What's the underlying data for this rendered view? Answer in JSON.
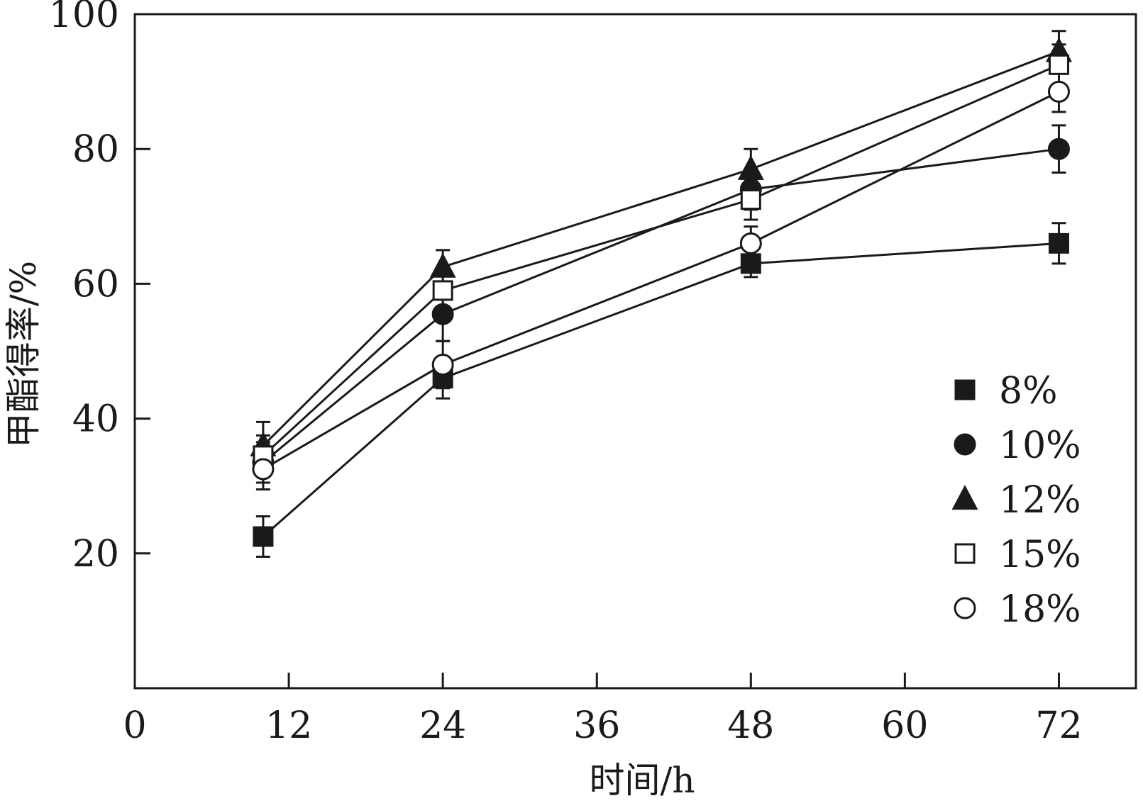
{
  "chart_data": {
    "type": "line",
    "xlabel": "时间/h",
    "ylabel": "甲酯得率/%",
    "xlim": [
      0,
      78
    ],
    "ylim": [
      0,
      100
    ],
    "x_ticks": [
      0,
      12,
      24,
      36,
      48,
      60,
      72
    ],
    "y_ticks": [
      20,
      40,
      60,
      80,
      100
    ],
    "x_tick_labels": [
      "0",
      "12",
      "24",
      "36",
      "48",
      "60",
      "72"
    ],
    "y_tick_labels": [
      "20",
      "40",
      "60",
      "80",
      "100"
    ],
    "grid": false,
    "legend_position": "right",
    "x": [
      10,
      24,
      48,
      72
    ],
    "series": [
      {
        "name": "8%",
        "marker": "square-filled",
        "values": [
          22.5,
          46.0,
          63.0,
          66.0
        ],
        "errors": [
          3.0,
          3.0,
          2.0,
          3.0
        ]
      },
      {
        "name": "10%",
        "marker": "circle-filled",
        "values": [
          33.5,
          55.5,
          74.0,
          80.0
        ],
        "errors": [
          3.0,
          4.0,
          3.0,
          3.5
        ]
      },
      {
        "name": "12%",
        "marker": "triangle-filled",
        "values": [
          36.0,
          62.5,
          77.0,
          94.5
        ],
        "errors": [
          3.5,
          2.5,
          3.0,
          3.0
        ]
      },
      {
        "name": "15%",
        "marker": "square-open",
        "values": [
          34.5,
          59.0,
          72.5,
          92.5
        ],
        "errors": [
          3.0,
          3.0,
          3.0,
          3.0
        ]
      },
      {
        "name": "18%",
        "marker": "circle-open",
        "values": [
          32.5,
          48.0,
          66.0,
          88.5
        ],
        "errors": [
          3.0,
          3.5,
          2.5,
          3.0
        ]
      }
    ]
  }
}
